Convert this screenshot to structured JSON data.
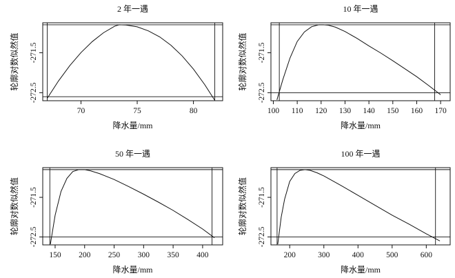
{
  "chart_data": [
    {
      "type": "line",
      "title": "2 年一遇",
      "xlabel": "降水量/mm",
      "ylabel": "轮廓对数似然值",
      "xlim": [
        66.6,
        82.6
      ],
      "ylim": [
        -272.7,
        -270.75
      ],
      "xticks": [
        "70",
        "75",
        "80"
      ],
      "yticks": [
        "-272.5",
        "-271.5"
      ],
      "grid": false,
      "series": [
        {
          "x": [
            67.0,
            68.0,
            69.0,
            70.0,
            71.0,
            72.0,
            73.0,
            73.4,
            74.0,
            75.0,
            76.0,
            77.0,
            78.0,
            79.0,
            80.0,
            81.0,
            81.9
          ],
          "y": [
            -272.64,
            -272.206,
            -271.824,
            -271.496,
            -271.221,
            -271.0,
            -270.834,
            -270.8,
            -270.805,
            -270.852,
            -270.953,
            -271.104,
            -271.312,
            -271.581,
            -271.909,
            -272.296,
            -272.691
          ]
        }
      ],
      "annotations": {
        "vertical_lines_x": [
          67.0,
          81.9
        ],
        "horizontal_lines_y": [
          -270.8,
          -272.6
        ]
      }
    },
    {
      "type": "line",
      "title": "10 年一遇",
      "xlabel": "降水量/mm",
      "ylabel": "轮廓对数似然值",
      "xlim": [
        99,
        174
      ],
      "ylim": [
        -272.7,
        -270.75
      ],
      "xticks": [
        "100",
        "110",
        "120",
        "130",
        "140",
        "150",
        "160",
        "170"
      ],
      "yticks": [
        "-272.5",
        "-271.5"
      ],
      "grid": false,
      "series": [
        {
          "x": [
            101.5,
            104,
            107,
            110,
            113,
            116,
            119,
            121,
            123,
            126,
            130,
            135,
            140,
            145,
            150,
            155,
            160,
            165,
            170
          ],
          "y": [
            -272.68,
            -272.17,
            -271.63,
            -271.22,
            -270.98,
            -270.85,
            -270.8,
            -270.8,
            -270.81,
            -270.86,
            -270.97,
            -271.14,
            -271.33,
            -271.51,
            -271.7,
            -271.9,
            -272.1,
            -272.32,
            -272.55
          ]
        }
      ],
      "annotations": {
        "vertical_lines_x": [
          102.5,
          167.5
        ],
        "horizontal_lines_y": [
          -270.8,
          -272.5
        ]
      }
    },
    {
      "type": "line",
      "title": "50 年一遇",
      "xlabel": "降水量/mm",
      "ylabel": "轮廓对数似然值",
      "xlim": [
        129,
        434
      ],
      "ylim": [
        -272.7,
        -270.75
      ],
      "xticks": [
        "150",
        "200",
        "250",
        "300",
        "350",
        "400"
      ],
      "yticks": [
        "-272.5",
        "-271.5"
      ],
      "grid": false,
      "series": [
        {
          "x": [
            142,
            150,
            160,
            170,
            180,
            190,
            200,
            210,
            225,
            250,
            275,
            300,
            325,
            350,
            375,
            400,
            420
          ],
          "y": [
            -272.68,
            -271.95,
            -271.35,
            -271.02,
            -270.85,
            -270.8,
            -270.8,
            -270.83,
            -270.9,
            -271.05,
            -271.23,
            -271.42,
            -271.62,
            -271.83,
            -272.06,
            -272.3,
            -272.52
          ]
        }
      ],
      "annotations": {
        "vertical_lines_x": [
          141,
          416
        ],
        "horizontal_lines_y": [
          -270.8,
          -272.5
        ]
      }
    },
    {
      "type": "line",
      "title": "100 年一遇",
      "xlabel": "降水量/mm",
      "ylabel": "轮廓对数似然值",
      "xlim": [
        145,
        670
      ],
      "ylim": [
        -272.7,
        -270.75
      ],
      "xticks": [
        "200",
        "300",
        "400",
        "500",
        "600"
      ],
      "yticks": [
        "-272.5",
        "-271.5"
      ],
      "grid": false,
      "series": [
        {
          "x": [
            165,
            175,
            185,
            200,
            215,
            230,
            245,
            260,
            280,
            300,
            350,
            400,
            450,
            500,
            550,
            600,
            640
          ],
          "y": [
            -272.68,
            -272.0,
            -271.55,
            -271.1,
            -270.9,
            -270.82,
            -270.8,
            -270.82,
            -270.88,
            -270.96,
            -271.2,
            -271.45,
            -271.7,
            -271.95,
            -272.18,
            -272.42,
            -272.6
          ]
        }
      ],
      "annotations": {
        "vertical_lines_x": [
          163,
          627
        ],
        "horizontal_lines_y": [
          -270.8,
          -272.5
        ]
      }
    }
  ]
}
